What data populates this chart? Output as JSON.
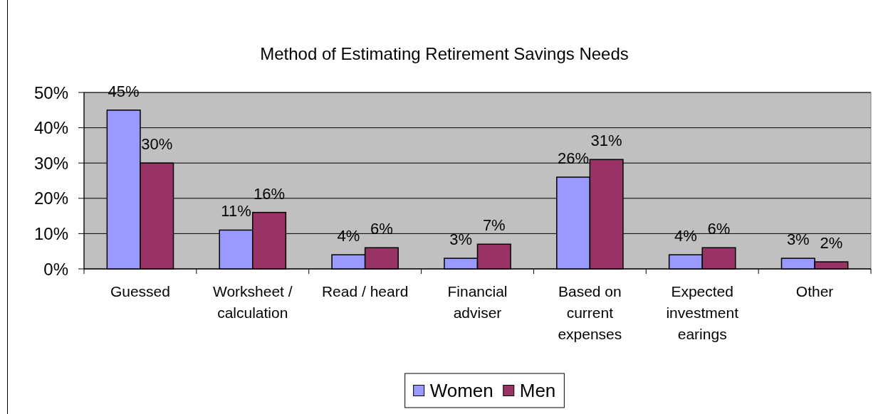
{
  "chart_data": {
    "type": "bar",
    "title": "Method of Estimating Retirement Savings Needs",
    "categories": [
      "Guessed",
      "Worksheet / calculation",
      "Read / heard",
      "Financial adviser",
      "Based on current expenses",
      "Expected investment earings",
      "Other"
    ],
    "series": [
      {
        "name": "Women",
        "color": "#9999ff",
        "values": [
          45,
          11,
          4,
          3,
          26,
          4,
          3
        ],
        "value_labels": [
          "45%",
          "11%",
          "4%",
          "3%",
          "26%",
          "4%",
          "3%"
        ]
      },
      {
        "name": "Men",
        "color": "#993366",
        "values": [
          30,
          16,
          6,
          7,
          31,
          6,
          2
        ],
        "value_labels": [
          "30%",
          "16%",
          "6%",
          "7%",
          "31%",
          "6%",
          "2%"
        ]
      }
    ],
    "ylim": [
      0,
      50
    ],
    "yticks": [
      {
        "value": 0,
        "label": "0%"
      },
      {
        "value": 10,
        "label": "10%"
      },
      {
        "value": 20,
        "label": "20%"
      },
      {
        "value": 30,
        "label": "30%"
      },
      {
        "value": 40,
        "label": "40%"
      },
      {
        "value": 50,
        "label": "50%"
      }
    ],
    "grid": "y",
    "legend": "bottom"
  }
}
